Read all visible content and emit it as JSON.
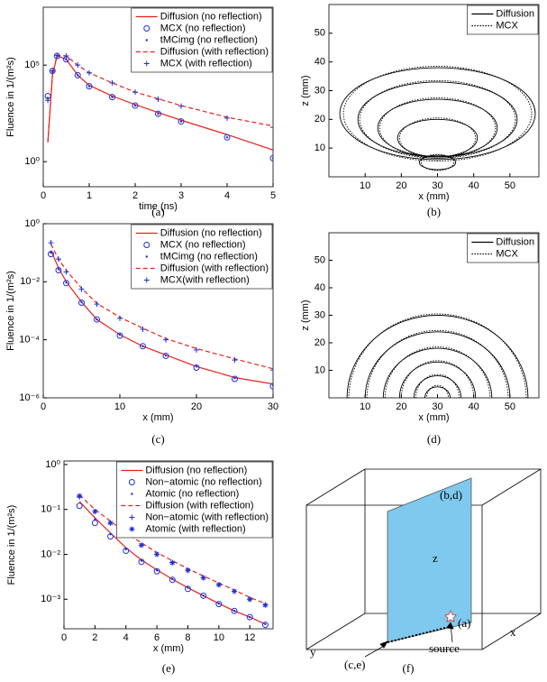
{
  "chart_data": [
    {
      "type": "line",
      "caption": "(a)",
      "xlabel": "time (ns)",
      "ylabel": "Fluence in 1/(m²s)",
      "ylog": true,
      "legend": "upper right",
      "x": [
        0.1,
        0.2,
        0.3,
        0.5,
        0.75,
        1,
        1.5,
        2,
        2.5,
        3,
        4,
        5
      ],
      "xlim": [
        0,
        5
      ],
      "xticks": [
        0,
        1,
        2,
        3,
        4,
        5
      ],
      "ylim": [
        0.05,
        100000000
      ],
      "yticks": [
        {
          "value": 1,
          "label": "10⁰"
        },
        {
          "value": 100000,
          "label": "10⁵"
        }
      ],
      "series": [
        {
          "name": "Diffusion (no reflection)",
          "color": "#e8221e",
          "style": "solid",
          "values": [
            10,
            30000,
            300000,
            200000,
            30000,
            9000,
            2500,
            900,
            350,
            140,
            25,
            4
          ]
        },
        {
          "name": "MCX (no reflection)",
          "color": "#1f2fd0",
          "style": "circle",
          "values": [
            2500,
            50000,
            300000,
            200000,
            30000,
            8000,
            2200,
            800,
            300,
            120,
            18,
            1.5
          ]
        },
        {
          "name": "tMCimg (no reflection)",
          "color": "#1f2fd0",
          "style": "dot",
          "values": [
            2000,
            45000,
            300000,
            200000,
            30000,
            8000,
            2200,
            800,
            300,
            120,
            18,
            1.5
          ]
        },
        {
          "name": "Diffusion (with reflection)",
          "color": "#e8221e",
          "style": "dashed",
          "values": [
            10,
            30000,
            320000,
            300000,
            100000,
            40000,
            12000,
            4000,
            1800,
            800,
            200,
            70
          ]
        },
        {
          "name": "MCX (with reflection)",
          "color": "#1f2fd0",
          "style": "plus",
          "values": [
            1500,
            50000,
            320000,
            300000,
            100000,
            40000,
            12000,
            4000,
            1700,
            750,
            180,
            60
          ]
        }
      ]
    },
    {
      "type": "contour",
      "caption": "(b)",
      "xlabel": "x (mm)",
      "ylabel": "z (mm)",
      "legend": "upper right",
      "xlim": [
        0,
        58
      ],
      "xticks": [
        10,
        20,
        30,
        40,
        50
      ],
      "ylim": [
        0,
        60
      ],
      "yticks": [
        10,
        20,
        30,
        40,
        50
      ],
      "series": [
        {
          "name": "Diffusion",
          "color": "#000000",
          "style": "solid",
          "contours": [
            {
              "cx": 30,
              "cz": 22,
              "rx": 27,
              "rz": 16
            },
            {
              "cx": 30,
              "cz": 20,
              "rx": 22,
              "rz": 13
            },
            {
              "cx": 30,
              "cz": 17,
              "rx": 16.5,
              "rz": 10
            },
            {
              "cx": 30,
              "cz": 13.5,
              "rx": 11,
              "rz": 6.5
            },
            {
              "cx": 30,
              "cz": 5,
              "rx": 5,
              "rz": 2.5
            }
          ]
        },
        {
          "name": "MCX",
          "color": "#000000",
          "style": "dotted",
          "contours": [
            {
              "cx": 30,
              "cz": 22,
              "rx": 26,
              "rz": 16.5
            },
            {
              "cx": 30,
              "cz": 20,
              "rx": 21.5,
              "rz": 13.5
            },
            {
              "cx": 30,
              "cz": 17,
              "rx": 16,
              "rz": 10.5
            },
            {
              "cx": 30,
              "cz": 13.5,
              "rx": 10.5,
              "rz": 7
            },
            {
              "cx": 30,
              "cz": 5,
              "rx": 4.5,
              "rz": 2.8
            }
          ]
        }
      ]
    },
    {
      "type": "line",
      "caption": "(c)",
      "xlabel": "x (mm)",
      "ylabel": "Fluence in 1/(m²s)",
      "ylog": true,
      "legend": "upper right",
      "x": [
        1,
        2,
        3,
        5,
        7,
        10,
        13,
        16,
        20,
        25,
        30
      ],
      "xlim": [
        0,
        30
      ],
      "xticks": [
        0,
        10,
        20,
        30
      ],
      "ylim": [
        1e-06,
        1
      ],
      "yticks": [
        {
          "value": 1,
          "label": "10⁰"
        },
        {
          "value": 0.01,
          "label": "10⁻²"
        },
        {
          "value": 0.0001,
          "label": "10⁻⁴"
        },
        {
          "value": 1e-06,
          "label": "10⁻⁶"
        }
      ],
      "series": [
        {
          "name": "Diffusion (no reflection)",
          "color": "#e8221e",
          "style": "solid",
          "values": [
            0.12,
            0.03,
            0.01,
            0.002,
            0.0005,
            0.00015,
            6e-05,
            3e-05,
            1.2e-05,
            5e-06,
            3e-06
          ]
        },
        {
          "name": "MCX (no reflection)",
          "color": "#1f2fd0",
          "style": "circle",
          "values": [
            0.09,
            0.025,
            0.009,
            0.0019,
            0.0005,
            0.00014,
            6e-05,
            2.8e-05,
            1.1e-05,
            4.5e-06,
            2.5e-06
          ]
        },
        {
          "name": "tMCimg (no reflection)",
          "color": "#1f2fd0",
          "style": "dot",
          "values": [
            0.1,
            0.027,
            0.0095,
            0.002,
            0.0005,
            0.00015,
            6e-05,
            2.9e-05,
            1.2e-05,
            4.8e-06,
            2.7e-06
          ]
        },
        {
          "name": "Diffusion (with reflection)",
          "color": "#e8221e",
          "style": "dashed",
          "values": [
            0.2,
            0.06,
            0.025,
            0.006,
            0.0018,
            0.0006,
            0.00025,
            0.00011,
            5e-05,
            2.2e-05,
            1e-05
          ]
        },
        {
          "name": "MCX(with reflection)",
          "color": "#1f2fd0",
          "style": "plus",
          "values": [
            0.22,
            0.06,
            0.022,
            0.0055,
            0.0017,
            0.00055,
            0.00023,
            0.0001,
            4.5e-05,
            2e-05,
            9e-06
          ]
        }
      ]
    },
    {
      "type": "contour",
      "caption": "(d)",
      "xlabel": "x (mm)",
      "ylabel": "z (mm)",
      "legend": "upper right",
      "xlim": [
        0,
        58
      ],
      "xticks": [
        10,
        20,
        30,
        40,
        50
      ],
      "ylim": [
        0,
        60
      ],
      "yticks": [
        10,
        20,
        30,
        40,
        50
      ],
      "series": [
        {
          "name": "Diffusion",
          "color": "#000000",
          "style": "solid",
          "contours": [
            {
              "cx": 30,
              "cz": 0,
              "rx": 25,
              "rz": 30
            },
            {
              "cx": 30,
              "cz": 0,
              "rx": 20,
              "rz": 24
            },
            {
              "cx": 30,
              "cz": 0,
              "rx": 15,
              "rz": 18
            },
            {
              "cx": 30,
              "cz": 0,
              "rx": 10.5,
              "rz": 13
            },
            {
              "cx": 30,
              "cz": 0,
              "rx": 6.5,
              "rz": 8
            },
            {
              "cx": 30,
              "cz": 0,
              "rx": 3.5,
              "rz": 4
            }
          ]
        },
        {
          "name": "MCX",
          "color": "#000000",
          "style": "dotted",
          "contours": [
            {
              "cx": 30,
              "cz": 0,
              "rx": 24.5,
              "rz": 30.5
            },
            {
              "cx": 30,
              "cz": 0,
              "rx": 19.5,
              "rz": 24.5
            },
            {
              "cx": 30,
              "cz": 0,
              "rx": 14.5,
              "rz": 18.5
            },
            {
              "cx": 30,
              "cz": 0,
              "rx": 10,
              "rz": 13.5
            },
            {
              "cx": 30,
              "cz": 0,
              "rx": 6,
              "rz": 8.5
            },
            {
              "cx": 30,
              "cz": 0,
              "rx": 3,
              "rz": 4.5
            }
          ]
        }
      ]
    },
    {
      "type": "line",
      "caption": "(e)",
      "xlabel": "x (mm)",
      "ylabel": "Fluence in 1/(m²s)",
      "ylog": true,
      "legend": "upper right",
      "x": [
        1,
        2,
        3,
        4,
        5,
        6,
        7,
        8,
        9,
        10,
        11,
        12,
        13
      ],
      "xlim": [
        0,
        13.5
      ],
      "xticks": [
        0,
        2,
        4,
        6,
        8,
        10,
        12
      ],
      "ylim": [
        0.00022,
        1.2
      ],
      "yticks": [
        {
          "value": 1,
          "label": "10⁰"
        },
        {
          "value": 0.1,
          "label": "10⁻¹"
        },
        {
          "value": 0.01,
          "label": "10⁻²"
        },
        {
          "value": 0.001,
          "label": "10⁻³"
        }
      ],
      "series": [
        {
          "name": "Diffusion (no reflection)",
          "color": "#e8221e",
          "style": "solid",
          "values": [
            0.15,
            0.065,
            0.03,
            0.014,
            0.0075,
            0.0045,
            0.0028,
            0.0018,
            0.0012,
            0.0008,
            0.00055,
            0.0004,
            0.00028
          ]
        },
        {
          "name": "Non−atomic (no reflection)",
          "color": "#1f2fd0",
          "style": "circle",
          "values": [
            0.12,
            0.05,
            0.025,
            0.012,
            0.0068,
            0.0042,
            0.0027,
            0.0017,
            0.0012,
            0.00078,
            0.00055,
            0.0004,
            0.00027
          ]
        },
        {
          "name": "Atomic (no reflection)",
          "color": "#1f2fd0",
          "style": "dot",
          "values": [
            0.19,
            0.06,
            0.028,
            0.013,
            0.0072,
            0.0044,
            0.0028,
            0.0018,
            0.0012,
            0.0008,
            0.00055,
            0.0004,
            0.00028
          ]
        },
        {
          "name": "Diffusion (with reflection)",
          "color": "#e8221e",
          "style": "dashed",
          "values": [
            0.21,
            0.1,
            0.055,
            0.03,
            0.018,
            0.011,
            0.0072,
            0.0048,
            0.0033,
            0.0023,
            0.0016,
            0.0011,
            0.0008
          ]
        },
        {
          "name": "Non−atomic (with reflection)",
          "color": "#1f2fd0",
          "style": "plus",
          "values": [
            0.19,
            0.09,
            0.05,
            0.028,
            0.016,
            0.01,
            0.0066,
            0.0044,
            0.003,
            0.0021,
            0.0015,
            0.001,
            0.00075
          ]
        },
        {
          "name": "Atomic (with reflection)",
          "color": "#1f2fd0",
          "style": "star",
          "values": [
            0.2,
            0.09,
            0.05,
            0.027,
            0.016,
            0.01,
            0.0065,
            0.0044,
            0.003,
            0.0021,
            0.0015,
            0.001,
            0.00074
          ]
        }
      ]
    }
  ],
  "diagram": {
    "caption": "(f)",
    "plane_label": "(b,d)",
    "z_label": "z",
    "point_label": "(a)",
    "x_label": "x",
    "y_label": "y",
    "line_label": "(c,e)",
    "source_label": "source"
  }
}
